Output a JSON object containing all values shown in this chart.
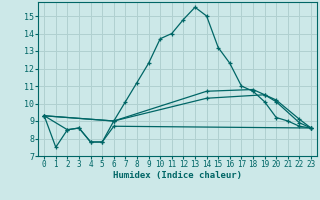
{
  "xlabel": "Humidex (Indice chaleur)",
  "bg_color": "#cce8e8",
  "grid_color": "#b0d0d0",
  "line_color": "#006666",
  "xlim": [
    -0.5,
    23.5
  ],
  "ylim": [
    7,
    15.8
  ],
  "yticks": [
    7,
    8,
    9,
    10,
    11,
    12,
    13,
    14,
    15
  ],
  "xticks": [
    0,
    1,
    2,
    3,
    4,
    5,
    6,
    7,
    8,
    9,
    10,
    11,
    12,
    13,
    14,
    15,
    16,
    17,
    18,
    19,
    20,
    21,
    22,
    23
  ],
  "line1_x": [
    0,
    1,
    2,
    3,
    4,
    5,
    6,
    7,
    8,
    9,
    10,
    11,
    12,
    13,
    14,
    15,
    16,
    17,
    18,
    19,
    20,
    21,
    22,
    23
  ],
  "line1_y": [
    9.3,
    7.5,
    8.5,
    8.6,
    7.8,
    7.8,
    9.0,
    10.1,
    11.2,
    12.3,
    13.7,
    14.0,
    14.8,
    15.5,
    15.0,
    13.2,
    12.3,
    11.0,
    10.7,
    10.1,
    9.2,
    9.0,
    8.7,
    8.6
  ],
  "line2_x": [
    0,
    2,
    3,
    4,
    5,
    6,
    23
  ],
  "line2_y": [
    9.3,
    8.5,
    8.6,
    7.8,
    7.8,
    8.7,
    8.6
  ],
  "line3_x": [
    0,
    6,
    14,
    19,
    20,
    22,
    23
  ],
  "line3_y": [
    9.3,
    9.0,
    10.3,
    10.5,
    10.1,
    8.9,
    8.6
  ],
  "line4_x": [
    0,
    6,
    14,
    18,
    19,
    20,
    22,
    23
  ],
  "line4_y": [
    9.3,
    9.0,
    10.7,
    10.8,
    10.5,
    10.2,
    9.1,
    8.6
  ]
}
